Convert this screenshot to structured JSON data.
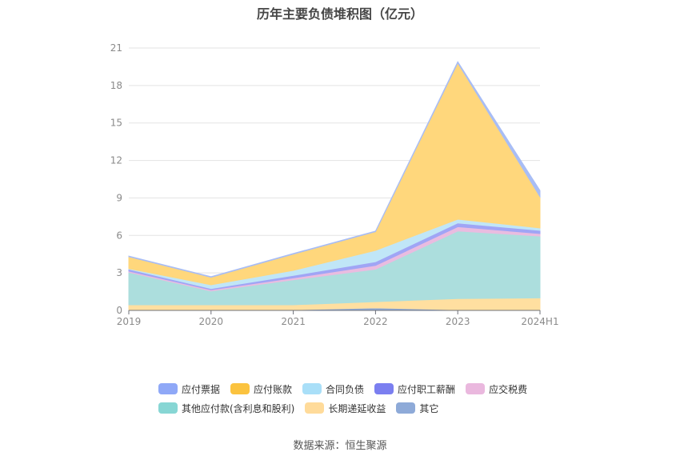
{
  "title": "历年主要负债堆积图（亿元）",
  "source": "数据来源：恒生聚源",
  "chart_data": {
    "type": "area",
    "stacked": true,
    "categories": [
      "2019",
      "2020",
      "2021",
      "2022",
      "2023",
      "2024H1"
    ],
    "ylim": [
      0,
      21
    ],
    "yticks": [
      0,
      3,
      6,
      9,
      12,
      15,
      18,
      21
    ],
    "grid": true,
    "legend_position": "bottom",
    "series": [
      {
        "name": "其它",
        "color": "#8eaad8",
        "values": [
          0.05,
          0.05,
          0.05,
          0.2,
          0.05,
          0.05
        ]
      },
      {
        "name": "长期递延收益",
        "color": "#ffdfa0",
        "values": [
          0.4,
          0.4,
          0.4,
          0.5,
          0.9,
          0.95
        ]
      },
      {
        "name": "其他应付款(含利息和股利)",
        "color": "#acdedd",
        "values": [
          2.6,
          1.1,
          2.0,
          2.6,
          5.4,
          4.95
        ]
      },
      {
        "name": "应交税费",
        "color": "#e9bce0",
        "values": [
          0.1,
          0.1,
          0.15,
          0.3,
          0.35,
          0.2
        ]
      },
      {
        "name": "应付职工薪酬",
        "color": "#a0a5f5",
        "values": [
          0.15,
          0.1,
          0.2,
          0.3,
          0.3,
          0.25
        ]
      },
      {
        "name": "合同负债",
        "color": "#c0e6f7",
        "values": [
          0.05,
          0.3,
          0.4,
          0.9,
          0.3,
          0.2
        ]
      },
      {
        "name": "应付账款",
        "color": "#ffd77c",
        "values": [
          0.95,
          0.6,
          1.3,
          1.5,
          12.5,
          2.5
        ]
      },
      {
        "name": "应付票据",
        "color": "#a8bdf5",
        "values": [
          0.05,
          0.05,
          0.05,
          0.05,
          0.1,
          0.5
        ]
      }
    ]
  },
  "legend": {
    "rows": [
      [
        {
          "name": "应付票据",
          "color": "#8fa8f7"
        },
        {
          "name": "应付账款",
          "color": "#fbc33f"
        },
        {
          "name": "合同负债",
          "color": "#a9dff8"
        },
        {
          "name": "应付职工薪酬",
          "color": "#7b7ff0"
        },
        {
          "name": "应交税费",
          "color": "#eab8de"
        }
      ],
      [
        {
          "name": "其他应付款(含利息和股利)",
          "color": "#87d6d4"
        },
        {
          "name": "长期递延收益",
          "color": "#ffdb9a"
        },
        {
          "name": "其它",
          "color": "#8eaad8"
        }
      ]
    ]
  }
}
